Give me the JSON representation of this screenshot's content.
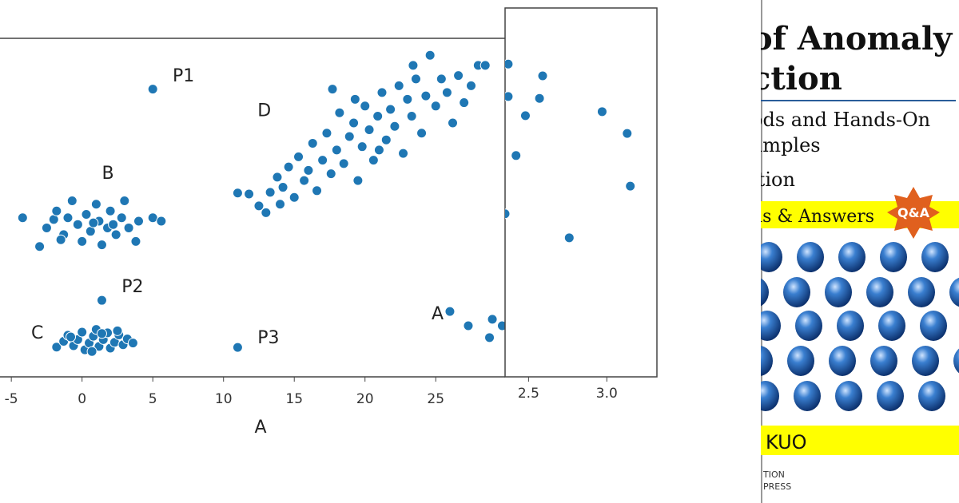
{
  "chart_data": [
    {
      "type": "scatter",
      "x_label": "A",
      "color": "#1f77b4",
      "x": [
        -4.2,
        -3,
        -2.5,
        -2,
        -1.8,
        -1.3,
        -1,
        -0.7,
        -0.3,
        0,
        0.3,
        0.6,
        1,
        1.2,
        1.4,
        1.8,
        2,
        2.4,
        2.8,
        3,
        3.3,
        3.8,
        4,
        5,
        5.6,
        0.8,
        -1.5,
        2.2,
        -1.8,
        -1.3,
        -1,
        -0.6,
        -0.3,
        0,
        0.2,
        0.5,
        0.8,
        1,
        1.2,
        1.5,
        1.8,
        2,
        2.3,
        2.6,
        2.9,
        3.2,
        3.6,
        0.7,
        1.4,
        -0.8,
        2.5,
        11,
        11.8,
        12.5,
        13,
        13.3,
        13.8,
        14.2,
        14.6,
        15,
        15.3,
        15.7,
        16,
        16.3,
        16.6,
        17,
        17.3,
        17.6,
        18,
        18.2,
        18.5,
        18.9,
        19.2,
        19.5,
        19.8,
        20,
        20.3,
        20.6,
        20.9,
        21.2,
        21.5,
        21.8,
        22.1,
        22.4,
        22.7,
        23,
        23.3,
        23.6,
        24,
        24.3,
        24.6,
        25,
        25.4,
        25.8,
        26.2,
        26.6,
        27,
        27.5,
        28,
        28.5,
        17.7,
        21,
        23.4,
        14,
        19.3,
        5,
        1.4,
        11,
        26,
        27.3,
        28.8,
        29.7,
        29
      ],
      "values": [
        47,
        38.5,
        44,
        46.5,
        49,
        42,
        47,
        52,
        45,
        40,
        48,
        43,
        51,
        46,
        39,
        44,
        49,
        42,
        47,
        52,
        44,
        40,
        46,
        47,
        46,
        45.5,
        40.5,
        45,
        8.8,
        10.5,
        12.3,
        9.2,
        11,
        13.2,
        8,
        10,
        12,
        14,
        9,
        11,
        13,
        8.5,
        10.2,
        12.4,
        9.5,
        11.2,
        10,
        7.5,
        12.8,
        11.8,
        13.6,
        54.3,
        54,
        50.5,
        48.5,
        54.5,
        59,
        56,
        62,
        53,
        65,
        58,
        61,
        69,
        55,
        64,
        72,
        60,
        67,
        78,
        63,
        71,
        75,
        58,
        68,
        80,
        73,
        64,
        77,
        84,
        70,
        79,
        74,
        86,
        66,
        82,
        77,
        88,
        72,
        83,
        95,
        80,
        88,
        84,
        75,
        89,
        81,
        86,
        92,
        92,
        85,
        67,
        92,
        51,
        82,
        85,
        22.6,
        8.7,
        19.3,
        15.1,
        11.6,
        15.1,
        17
      ],
      "xlim": [
        -5.8,
        29.9
      ],
      "ylim": [
        0,
        100
      ],
      "xticks": [
        -5,
        0,
        5,
        10,
        15,
        20,
        25
      ],
      "annotations": [
        {
          "text": "P1",
          "x": 6.4,
          "y": 87.3
        },
        {
          "text": "D",
          "x": 12.4,
          "y": 77
        },
        {
          "text": "B",
          "x": 1.4,
          "y": 58.5
        },
        {
          "text": "P2",
          "x": 2.8,
          "y": 25
        },
        {
          "text": "C",
          "x": -3.6,
          "y": 11.3
        },
        {
          "text": "P3",
          "x": 12.4,
          "y": 9.9
        },
        {
          "text": "A",
          "x": 24.7,
          "y": 17
        }
      ]
    },
    {
      "type": "scatter",
      "color": "#1f77b4",
      "x": [
        2.37,
        2.59,
        2.37,
        2.57,
        2.48,
        2.42,
        2.97,
        3.13,
        3.15,
        2.35,
        2.76
      ],
      "values": [
        84.8,
        81.6,
        76,
        75.5,
        70.8,
        60,
        71.9,
        66,
        51.7,
        44.2,
        37.7
      ],
      "xlim": [
        2.35,
        3.32
      ],
      "ylim": [
        0,
        100
      ],
      "xticks": [
        2.5,
        {
          "value": 3,
          "label": "3.0"
        }
      ]
    }
  ],
  "book_cover": {
    "title_lines": [
      "of Anomaly",
      "ction"
    ],
    "subtitle_lines": [
      "ods and Hands-On",
      "amples"
    ],
    "edition": "ition",
    "band_text": "ns & Answers",
    "badge": "Q&A",
    "author": "KUO",
    "publisher_lines": [
      "TION",
      "PRESS"
    ]
  }
}
